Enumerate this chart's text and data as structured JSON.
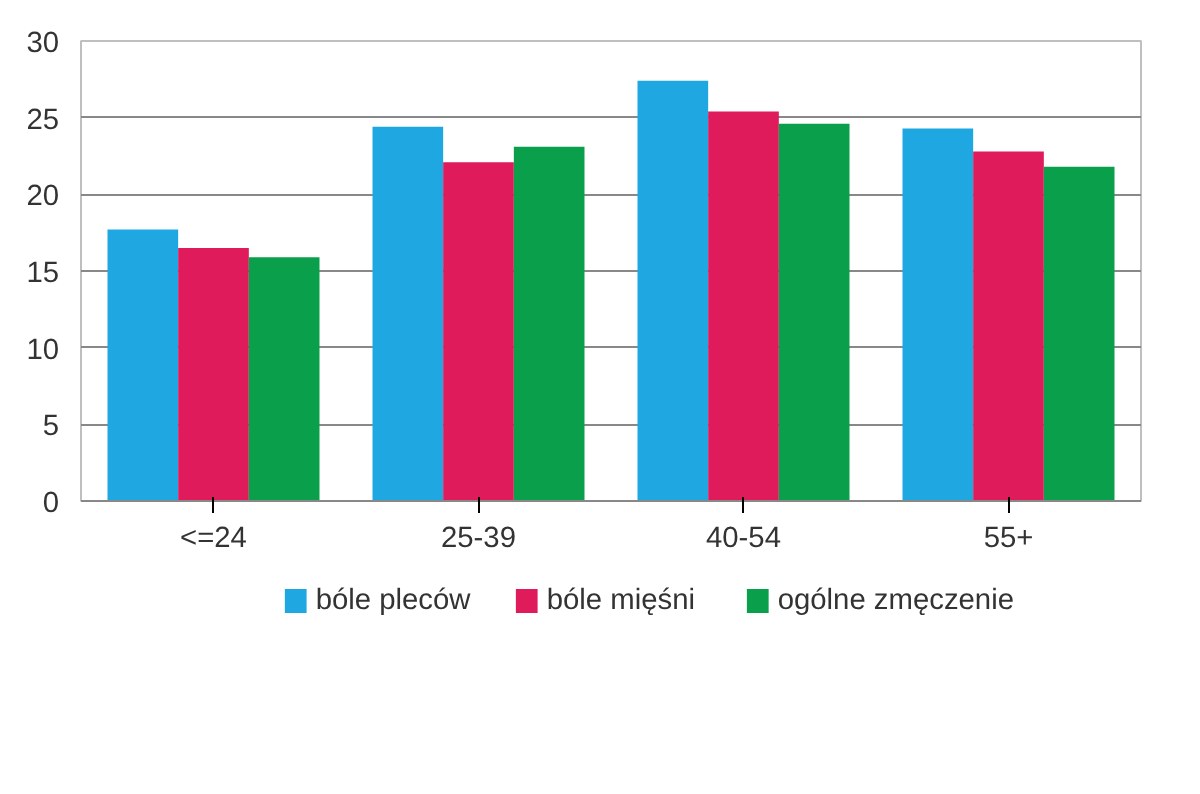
{
  "chart_data": {
    "type": "bar",
    "categories": [
      "<=24",
      "25-39",
      "40-54",
      "55+"
    ],
    "series": [
      {
        "name": "bóle pleców",
        "color": "#1ea7e1",
        "values": [
          17.7,
          24.4,
          27.4,
          24.3
        ]
      },
      {
        "name": "bóle mięśni",
        "color": "#e01b5b",
        "values": [
          16.5,
          22.1,
          25.4,
          22.8
        ]
      },
      {
        "name": "ogólne zmęczenie",
        "color": "#0aa04b",
        "values": [
          15.9,
          23.1,
          24.6,
          21.8
        ]
      }
    ],
    "ylim": [
      0,
      30
    ],
    "yticks": [
      0,
      5,
      10,
      15,
      20,
      25,
      30
    ],
    "grid": "y",
    "legend": "bottom"
  }
}
